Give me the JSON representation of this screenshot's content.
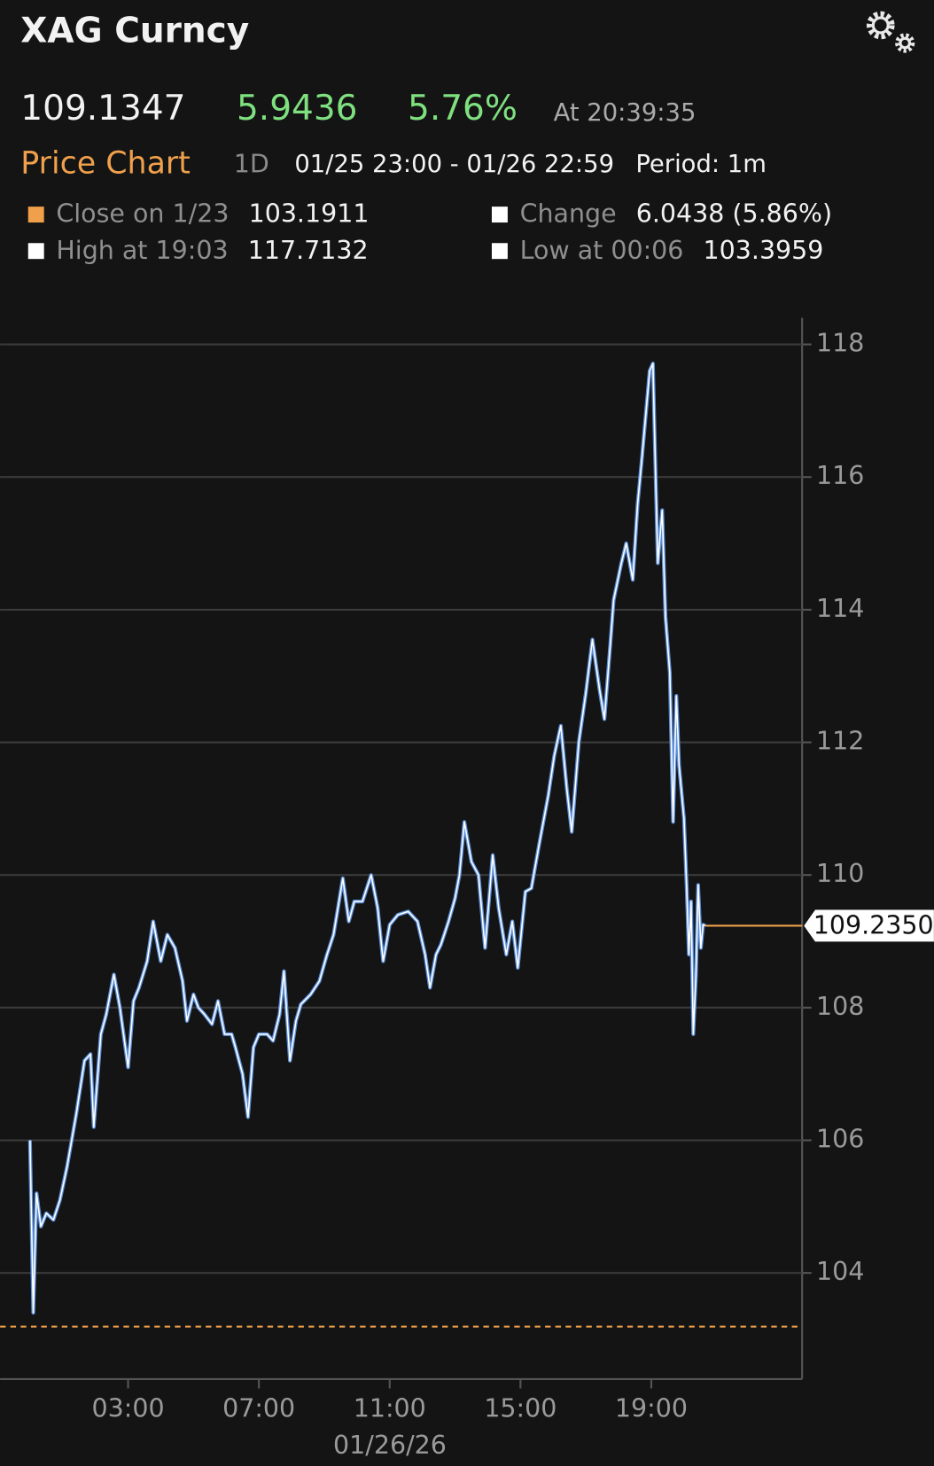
{
  "chart_data": {
    "type": "line",
    "title": "XAG Curncy",
    "quote": {
      "price": "109.1347",
      "change": "5.9436",
      "change_pct": "5.76%",
      "time": "At 20:39:35"
    },
    "subtitle": "Price Chart",
    "range_button": "1D",
    "date_range": "01/25 23:00 - 01/26 22:59",
    "period": "Period: 1m",
    "stats": [
      {
        "label": "Close on 1/23",
        "value": 103.1911,
        "color": "#f0a04b"
      },
      {
        "label": "Change",
        "value": "6.0438 (5.86%)",
        "color": "#ffffff"
      },
      {
        "label": "High at 19:03",
        "value": 117.7132,
        "color": "#ffffff"
      },
      {
        "label": "Low at 00:06",
        "value": 103.3959,
        "color": "#ffffff"
      }
    ],
    "last_marker": {
      "value": 109.235,
      "label": "109.2350"
    },
    "x": [
      "00:00",
      "00:06",
      "00:12",
      "00:20",
      "00:30",
      "00:43",
      "00:55",
      "01:08",
      "01:25",
      "01:40",
      "01:51",
      "01:57",
      "02:10",
      "02:20",
      "02:34",
      "02:45",
      "03:00",
      "03:10",
      "03:20",
      "03:35",
      "03:46",
      "04:00",
      "04:12",
      "04:26",
      "04:40",
      "04:48",
      "05:00",
      "05:09",
      "05:20",
      "05:34",
      "05:45",
      "05:57",
      "06:10",
      "06:17",
      "06:30",
      "06:40",
      "06:50",
      "07:00",
      "07:15",
      "07:26",
      "07:38",
      "07:46",
      "07:57",
      "08:08",
      "08:17",
      "08:35",
      "08:51",
      "09:05",
      "09:17",
      "09:34",
      "09:45",
      "09:55",
      "10:10",
      "10:26",
      "10:38",
      "10:48",
      "11:00",
      "11:15",
      "11:34",
      "11:51",
      "12:05",
      "12:14",
      "12:25",
      "12:34",
      "12:48",
      "13:00",
      "13:08",
      "13:17",
      "13:30",
      "13:43",
      "13:55",
      "14:09",
      "14:20",
      "14:34",
      "14:45",
      "14:55",
      "15:09",
      "15:20",
      "15:34",
      "15:51",
      "16:02",
      "16:14",
      "16:25",
      "16:34",
      "16:47",
      "17:00",
      "17:12",
      "17:25",
      "17:34",
      "17:45",
      "17:51",
      "18:05",
      "18:14",
      "18:26",
      "18:35",
      "18:43",
      "18:57",
      "19:03",
      "19:08",
      "19:12",
      "19:20",
      "19:26",
      "19:34",
      "19:40",
      "19:46",
      "19:51",
      "20:00",
      "20:05",
      "20:09",
      "20:13",
      "20:17",
      "20:22",
      "20:26",
      "20:31",
      "20:35",
      "20:39"
    ],
    "series": [
      {
        "name": "XAG Curncy",
        "color": "#5b8fd9",
        "values": [
          106.0,
          103.4,
          105.2,
          104.7,
          104.9,
          104.8,
          105.1,
          105.6,
          106.4,
          107.2,
          107.3,
          106.2,
          107.6,
          107.9,
          108.5,
          108.0,
          107.1,
          108.1,
          108.3,
          108.7,
          109.3,
          108.7,
          109.1,
          108.9,
          108.4,
          107.8,
          108.2,
          108.0,
          107.9,
          107.75,
          108.1,
          107.6,
          107.6,
          107.4,
          107.0,
          106.35,
          107.4,
          107.6,
          107.6,
          107.5,
          107.9,
          108.55,
          107.2,
          107.8,
          108.05,
          108.2,
          108.4,
          108.8,
          109.1,
          109.95,
          109.3,
          109.6,
          109.6,
          110.0,
          109.5,
          108.7,
          109.25,
          109.4,
          109.45,
          109.3,
          108.8,
          108.3,
          108.8,
          108.95,
          109.3,
          109.65,
          110.0,
          110.8,
          110.2,
          110.0,
          108.9,
          110.3,
          109.5,
          108.8,
          109.3,
          108.6,
          109.75,
          109.8,
          110.45,
          111.2,
          111.8,
          112.25,
          111.3,
          110.65,
          112.0,
          112.75,
          113.55,
          112.8,
          112.35,
          113.5,
          114.15,
          114.7,
          115.0,
          114.45,
          115.6,
          116.3,
          117.6,
          117.7132,
          116.0,
          114.7,
          115.5,
          113.9,
          113.05,
          110.8,
          112.7,
          111.65,
          110.85,
          109.8,
          108.8,
          109.6,
          107.6,
          108.5,
          109.85,
          108.9,
          109.25,
          109.235
        ]
      }
    ],
    "xlim": [
      "23:00",
      "22:59"
    ],
    "xticks": [
      "03:00",
      "07:00",
      "11:00",
      "15:00",
      "19:00"
    ],
    "xlabel": "01/26/26",
    "ylim": [
      102.4,
      118.4
    ],
    "yticks": [
      104,
      106,
      108,
      110,
      112,
      114,
      116,
      118
    ],
    "grid": true
  }
}
